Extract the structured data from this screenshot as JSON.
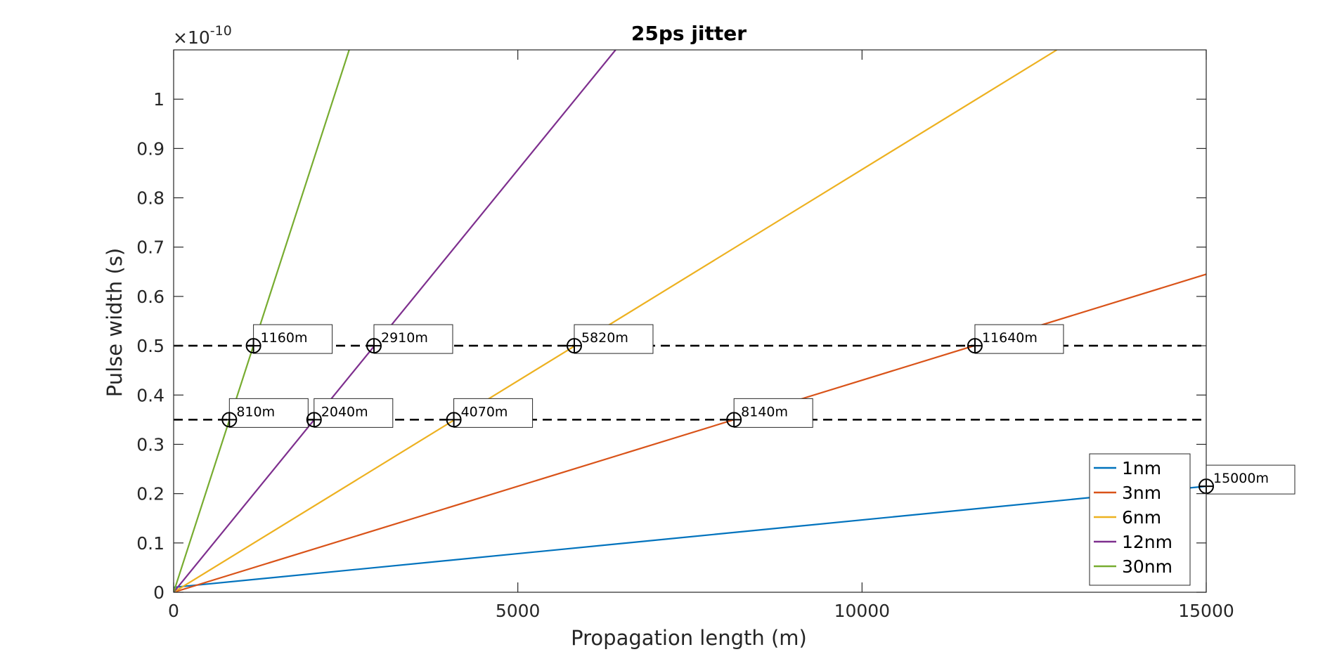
{
  "chart_data": {
    "type": "line",
    "title": "25ps jitter",
    "xlabel": "Propagation length (m)",
    "ylabel": "Pulse width (s)",
    "xlim": [
      0,
      15000
    ],
    "ylim": [
      0,
      1.1
    ],
    "y_exponent_label": "×10",
    "y_exponent_power": "-10",
    "x_ticks": [
      0,
      5000,
      10000,
      15000
    ],
    "x_tick_labels": [
      "0",
      "5000",
      "10000",
      "15000"
    ],
    "y_ticks": [
      0,
      0.1,
      0.2,
      0.3,
      0.4,
      0.5,
      0.6,
      0.7,
      0.8,
      0.9,
      1
    ],
    "y_tick_labels": [
      "0",
      "0.1",
      "0.2",
      "0.3",
      "0.4",
      "0.5",
      "0.6",
      "0.7",
      "0.8",
      "0.9",
      "1"
    ],
    "grid": false,
    "legend_position": "bottom-right",
    "series": [
      {
        "name": "1nm",
        "color": "#0072BD",
        "x": [
          0,
          15000
        ],
        "y": [
          0.01,
          0.215
        ]
      },
      {
        "name": "3nm",
        "color": "#D95319",
        "x": [
          0,
          15000
        ],
        "y": [
          0,
          0.645
        ]
      },
      {
        "name": "6nm",
        "color": "#EDB120",
        "x": [
          0,
          12830
        ],
        "y": [
          0,
          1.1
        ]
      },
      {
        "name": "12nm",
        "color": "#7E2F8E",
        "x": [
          0,
          6420
        ],
        "y": [
          0,
          1.1
        ]
      },
      {
        "name": "30nm",
        "color": "#77AC30",
        "x": [
          0,
          2550
        ],
        "y": [
          0,
          1.1
        ]
      }
    ],
    "reference_lines": [
      {
        "y": 0.5,
        "style": "dashed",
        "color": "#000000"
      },
      {
        "y": 0.35,
        "style": "dashed",
        "color": "#000000"
      }
    ],
    "annotations": [
      {
        "x": 1160,
        "y": 0.5,
        "label": "1160m"
      },
      {
        "x": 2910,
        "y": 0.5,
        "label": "2910m"
      },
      {
        "x": 5820,
        "y": 0.5,
        "label": "5820m"
      },
      {
        "x": 11640,
        "y": 0.5,
        "label": "11640m"
      },
      {
        "x": 810,
        "y": 0.35,
        "label": "810m"
      },
      {
        "x": 2040,
        "y": 0.35,
        "label": "2040m"
      },
      {
        "x": 4070,
        "y": 0.35,
        "label": "4070m"
      },
      {
        "x": 8140,
        "y": 0.35,
        "label": "8140m"
      },
      {
        "x": 15000,
        "y": 0.215,
        "label": "15000m"
      }
    ]
  }
}
